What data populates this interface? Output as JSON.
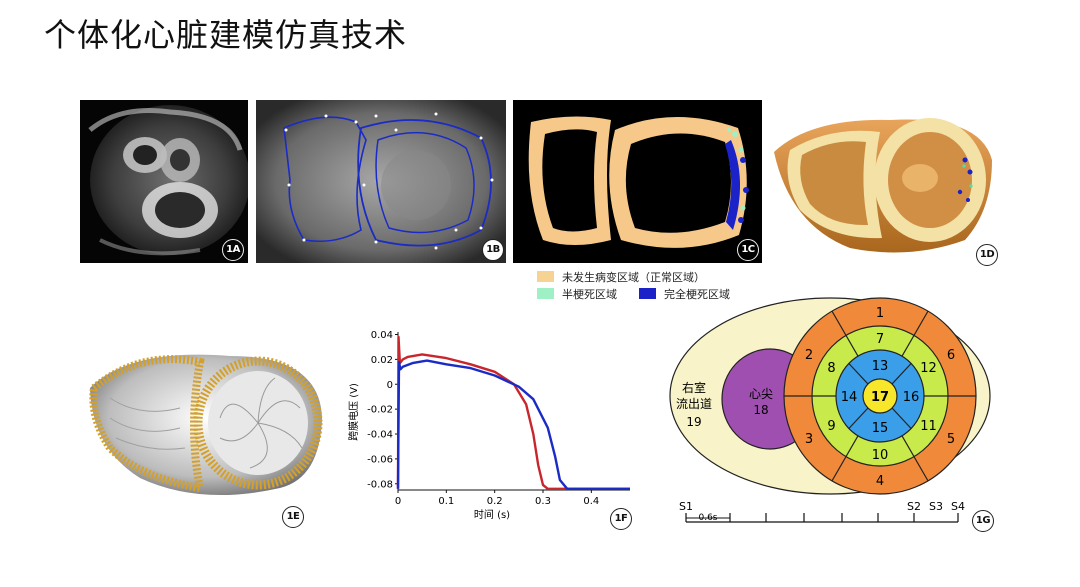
{
  "title": "个体化心脏建模仿真技术",
  "panels": {
    "a": {
      "label": "1A"
    },
    "b": {
      "label": "1B"
    },
    "c": {
      "label": "1C"
    },
    "d": {
      "label": "1D"
    },
    "e": {
      "label": "1E"
    },
    "f": {
      "label": "1F"
    },
    "g": {
      "label": "1G"
    }
  },
  "legend": {
    "normal": {
      "label": "未发生病变区域（正常区域）",
      "color": "#f6d293"
    },
    "semi": {
      "label": "半梗死区域",
      "color": "#9ff0c4"
    },
    "full": {
      "label": "完全梗死区域",
      "color": "#1a22c8"
    }
  },
  "chart_data": {
    "type": "line",
    "xlabel": "时间 (s)",
    "ylabel": "跨膜电压 (V)",
    "xlim": [
      0,
      0.48
    ],
    "ylim": [
      -0.085,
      0.042
    ],
    "xticks": [
      "0",
      "0.1",
      "0.2",
      "0.3",
      "0.4"
    ],
    "yticks": [
      "0.04",
      "0.02",
      "0",
      "-0.02",
      "-0.04",
      "-0.06",
      "-0.08"
    ],
    "series": [
      {
        "color": "#c8262c",
        "x": [
          0,
          0.001,
          0.004,
          0.01,
          0.02,
          0.05,
          0.1,
          0.15,
          0.2,
          0.24,
          0.265,
          0.28,
          0.29,
          0.3,
          0.31,
          0.48
        ],
        "y": [
          -0.084,
          0.038,
          0.017,
          0.02,
          0.022,
          0.024,
          0.021,
          0.016,
          0.01,
          0.0,
          -0.016,
          -0.04,
          -0.065,
          -0.081,
          -0.084,
          -0.084
        ]
      },
      {
        "color": "#1b2bc5",
        "x": [
          0,
          0.002,
          0.005,
          0.01,
          0.03,
          0.06,
          0.1,
          0.15,
          0.2,
          0.25,
          0.28,
          0.31,
          0.325,
          0.335,
          0.35,
          0.48
        ],
        "y": [
          -0.084,
          0.018,
          0.012,
          0.014,
          0.017,
          0.019,
          0.016,
          0.013,
          0.007,
          -0.002,
          -0.012,
          -0.035,
          -0.058,
          -0.077,
          -0.084,
          -0.084
        ]
      }
    ]
  },
  "bullseye": {
    "segments": [
      "1",
      "2",
      "3",
      "4",
      "5",
      "6",
      "7",
      "8",
      "9",
      "10",
      "11",
      "12",
      "13",
      "14",
      "15",
      "16",
      "17"
    ],
    "rvot_label": [
      "右室",
      "流出道",
      "19"
    ],
    "apex_label": [
      "心尖",
      "18"
    ],
    "colors": {
      "outer": "#f08a3a",
      "mid": "#c8ea4a",
      "inner": "#3b9ee8",
      "apex": "#f7e62a",
      "rvot": "#f8f3c8",
      "apexcap": "#9e4fb0"
    }
  },
  "timeline": {
    "markers": [
      "S1",
      "S2",
      "S3",
      "S4"
    ],
    "scale_label": "0.6s"
  }
}
